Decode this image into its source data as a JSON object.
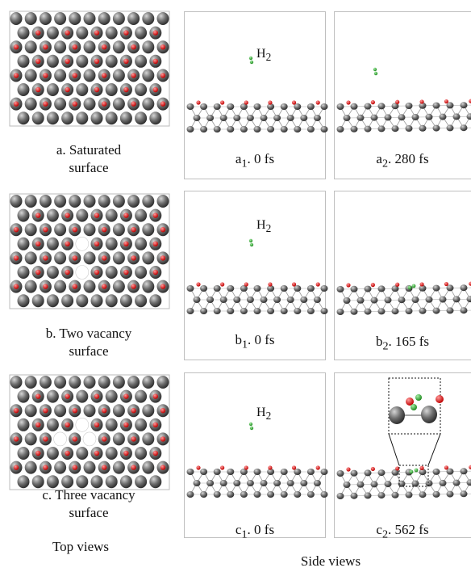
{
  "top_panels": [
    {
      "caption_line1": "a. Saturated",
      "caption_line2": "surface",
      "vacancies": []
    },
    {
      "caption_line1": "b. Two vacancy",
      "caption_line2": "surface",
      "vacancies": [
        [
          4,
          3
        ],
        [
          4,
          5
        ]
      ]
    },
    {
      "caption_line1": "c. Three vacancy",
      "caption_line2": "surface",
      "vacancies": [
        [
          4,
          3
        ],
        [
          3,
          4
        ],
        [
          5,
          4
        ]
      ]
    }
  ],
  "side_panels": [
    {
      "id": "a1",
      "letter": "a",
      "sub": "1",
      "sep": ".",
      "time": " 0 fs",
      "h2_label": "H",
      "h2_sub": "2"
    },
    {
      "id": "a2",
      "letter": "a",
      "sub": "2",
      "sep": ".",
      "time": " 280 fs"
    },
    {
      "id": "b1",
      "letter": "b",
      "sub": "1",
      "sep": ".",
      "time": " 0 fs",
      "h2_label": "H",
      "h2_sub": "2"
    },
    {
      "id": "b2",
      "letter": "b",
      "sub": "2",
      "sep": ".",
      "time": " 165 fs"
    },
    {
      "id": "c1",
      "letter": "c",
      "sub": "1",
      "sep": ".",
      "time": " 0 fs",
      "h2_label": "H",
      "h2_sub": "2"
    },
    {
      "id": "c2",
      "letter": "c",
      "sub": "2",
      "sep": ".",
      "time": " 562 fs"
    }
  ],
  "footer": {
    "top_views": "Top views",
    "side_views": "Side views"
  },
  "colors": {
    "metal": "#7a7a7a",
    "oxygen": "#e02020",
    "hydrogen": "#2e9e2e",
    "bond": "#9a9a9a"
  }
}
